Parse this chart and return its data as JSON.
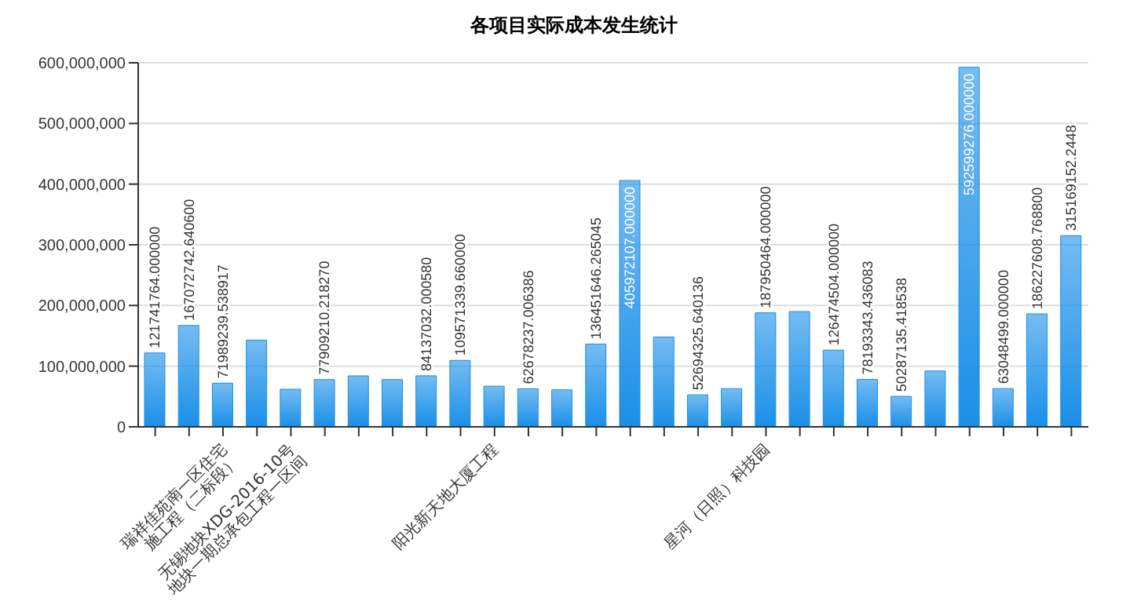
{
  "chart_data": {
    "type": "bar",
    "title": "各项目实际成本发生统计",
    "categories": [
      null,
      null,
      "瑞祥佳苑南一区住宅 施工程（二标段）",
      null,
      "无锡地块XDG-2016-10号 地块一期总承包工程一区间",
      null,
      null,
      null,
      null,
      null,
      "阳光新天地大厦工程",
      null,
      null,
      null,
      null,
      null,
      null,
      null,
      "星河（日照）科技园",
      null,
      null,
      null,
      null,
      null,
      null,
      null,
      null,
      null
    ],
    "values": [
      121741764,
      167072742.6406,
      71989239.538917,
      143000000,
      62000000,
      77909210.21827,
      84000000,
      78000000,
      84137032.00058,
      109571339.66,
      67000000,
      62678237.006386,
      61000000,
      136451646.265045,
      405972107,
      148000000,
      52694325.640136,
      63000000,
      187950464,
      190000000,
      126474504,
      78193343.436083,
      50287135.418538,
      92000000,
      592599276,
      63048499,
      186227608.7688,
      315169152.2448
    ],
    "value_labels": [
      "121741764.000000",
      "167072742.640600",
      "71989239.538917",
      null,
      null,
      "77909210.218270",
      null,
      null,
      "84137032.000580",
      "109571339.660000",
      null,
      "62678237.006386",
      null,
      "136451646.265045",
      "405972107.000000",
      null,
      "52694325.640136",
      null,
      "187950464.000000",
      null,
      "126474504.000000",
      "78193343.436083",
      "50287135.418538",
      null,
      "592599276.000000",
      "63048499.000000",
      "186227608.768800",
      "315169152.2448"
    ],
    "color": "#1a8fe8",
    "ylim": [
      0,
      600000000
    ],
    "yticks": [
      {
        "value": 0,
        "label": "0"
      },
      {
        "value": 100000000,
        "label": "100,000,000"
      },
      {
        "value": 200000000,
        "label": "200,000,000"
      },
      {
        "value": 300000000,
        "label": "300,000,000"
      },
      {
        "value": 400000000,
        "label": "400,000,000"
      },
      {
        "value": 500000000,
        "label": "500,000,000"
      },
      {
        "value": 600000000,
        "label": "600,000,000"
      }
    ],
    "grid": "y"
  }
}
